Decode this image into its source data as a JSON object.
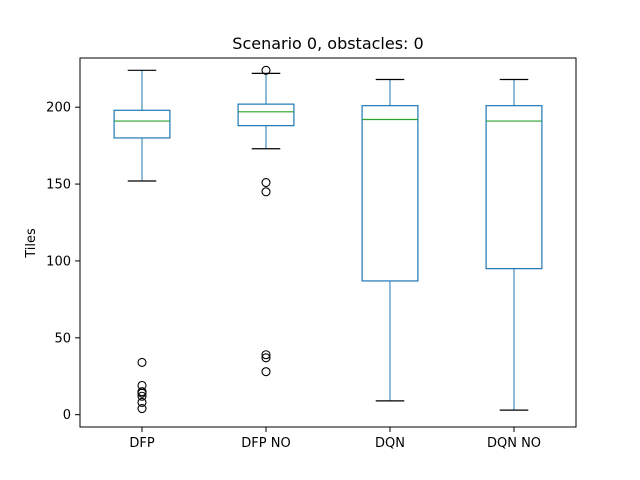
{
  "chart_data": {
    "type": "box",
    "title": "Scenario 0, obstacles: 0",
    "xlabel": "",
    "ylabel": "Tiles",
    "ylim": [
      -8,
      232
    ],
    "yticks": [
      0,
      50,
      100,
      150,
      200
    ],
    "grid": false,
    "colors": {
      "box": "#1f77b4",
      "median": "#2ca02c",
      "whisker_cap": "#000000",
      "outlier": "#000000"
    },
    "categories": [
      "DFP",
      "DFP NO",
      "DQN",
      "DQN NO"
    ],
    "boxes": [
      {
        "name": "DFP",
        "whisker_low": 152,
        "q1": 180,
        "median": 191,
        "q3": 198,
        "whisker_high": 224,
        "outliers": [
          34,
          19,
          15,
          14,
          12,
          8,
          4
        ]
      },
      {
        "name": "DFP NO",
        "whisker_low": 173,
        "q1": 188,
        "median": 197,
        "q3": 202,
        "whisker_high": 222,
        "outliers": [
          224,
          151,
          145,
          39,
          37,
          28
        ]
      },
      {
        "name": "DQN",
        "whisker_low": 9,
        "q1": 87,
        "median": 192,
        "q3": 201,
        "whisker_high": 218,
        "outliers": []
      },
      {
        "name": "DQN NO",
        "whisker_low": 3,
        "q1": 95,
        "median": 191,
        "q3": 201,
        "whisker_high": 218,
        "outliers": []
      }
    ]
  }
}
